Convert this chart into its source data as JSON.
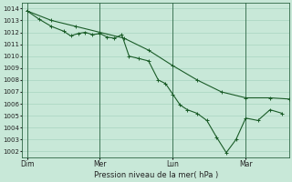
{
  "xlabel": "Pression niveau de la mer( hPa )",
  "ylim": [
    1001.5,
    1014.5
  ],
  "yticks": [
    1002,
    1003,
    1004,
    1005,
    1006,
    1007,
    1008,
    1009,
    1010,
    1011,
    1012,
    1013,
    1014
  ],
  "background_color": "#c8e8d8",
  "grid_color": "#a8d4c0",
  "line_color": "#1a5c28",
  "xtick_labels": [
    "Dim",
    "Mer",
    "Lun",
    "Mar"
  ],
  "xtick_positions": [
    0,
    30,
    60,
    90
  ],
  "xlim": [
    -2,
    108
  ],
  "vline_positions": [
    0,
    30,
    60,
    90
  ],
  "line1_x": [
    0,
    5,
    10,
    15,
    18,
    21,
    24,
    27,
    30,
    33,
    36,
    39,
    42,
    46,
    50,
    54,
    57,
    60,
    63,
    66,
    70,
    74,
    78,
    82,
    86,
    90,
    95,
    100,
    105
  ],
  "line1_y": [
    1013.8,
    1013.1,
    1012.5,
    1012.1,
    1011.7,
    1011.9,
    1012.0,
    1011.8,
    1011.9,
    1011.6,
    1011.5,
    1011.8,
    1010.0,
    1009.8,
    1009.6,
    1008.0,
    1007.7,
    1006.8,
    1005.9,
    1005.5,
    1005.2,
    1004.6,
    1003.2,
    1001.9,
    1003.0,
    1004.8,
    1004.6,
    1005.5,
    1005.2
  ],
  "line2_x": [
    0,
    10,
    20,
    30,
    40,
    50,
    60,
    70,
    80,
    90,
    100,
    108
  ],
  "line2_y": [
    1013.8,
    1013.0,
    1012.5,
    1012.0,
    1011.5,
    1010.5,
    1009.2,
    1008.0,
    1007.0,
    1006.5,
    1006.5,
    1006.4
  ],
  "ytick_fontsize": 5.0,
  "xtick_fontsize": 5.5,
  "xlabel_fontsize": 6.0
}
